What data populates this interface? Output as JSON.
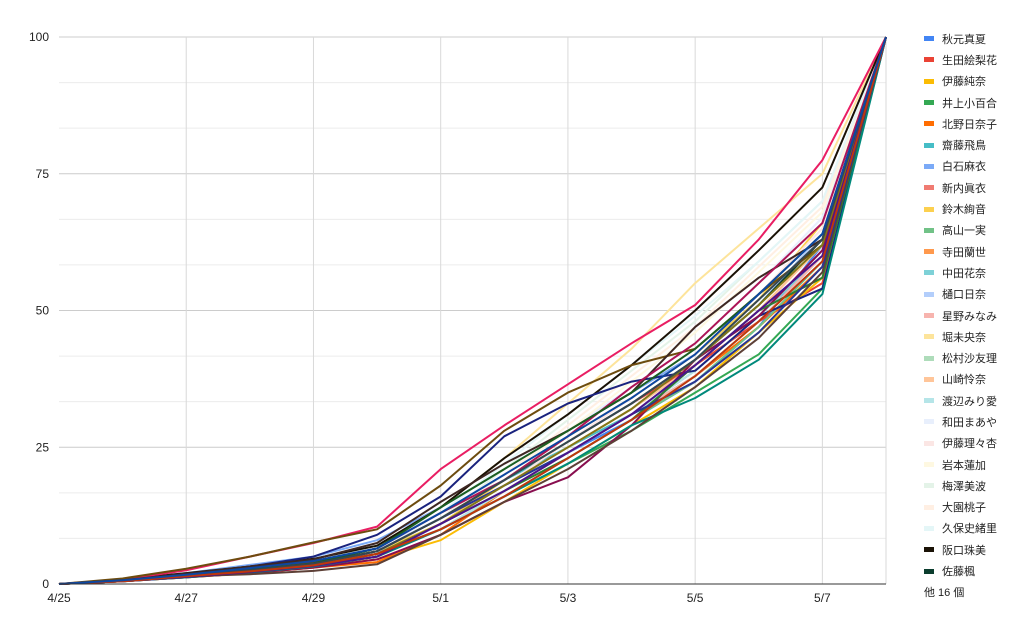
{
  "chart_data": {
    "type": "line",
    "title": "",
    "xlabel": "",
    "ylabel": "",
    "ylim": [
      0,
      100
    ],
    "y_ticks": [
      0,
      25,
      50,
      75,
      100
    ],
    "x": [
      "4/25",
      "4/26",
      "4/27",
      "4/28",
      "4/29",
      "4/30",
      "5/1",
      "5/2",
      "5/3",
      "5/4",
      "5/5",
      "5/6",
      "5/7",
      "5/8"
    ],
    "x_tick_labels": [
      "4/25",
      "4/27",
      "4/29",
      "5/1",
      "5/3",
      "5/5",
      "5/7"
    ],
    "grid": true,
    "legend_position": "right",
    "legend_more": "他 16 個",
    "series": [
      {
        "name": "秋元真夏",
        "color": "#4285F4",
        "values": [
          0,
          0.5,
          1.5,
          2.5,
          3.5,
          5.5,
          11,
          18,
          24,
          30,
          37,
          47,
          62,
          100
        ]
      },
      {
        "name": "生田絵梨花",
        "color": "#EA4335",
        "values": [
          0,
          0.6,
          1.5,
          2.5,
          3.8,
          6,
          12,
          19,
          26,
          33,
          40,
          48,
          55,
          100
        ]
      },
      {
        "name": "伊藤純奈",
        "color": "#FBBC04",
        "values": [
          0,
          0.5,
          1.2,
          2,
          3,
          4.5,
          8,
          15,
          22,
          29,
          36,
          46,
          56,
          100
        ]
      },
      {
        "name": "井上小百合",
        "color": "#34A853",
        "values": [
          0,
          0.6,
          1.5,
          2.5,
          3.5,
          5.5,
          10,
          16,
          22,
          28,
          35,
          42,
          54,
          100
        ]
      },
      {
        "name": "北野日奈子",
        "color": "#FF6D01",
        "values": [
          0,
          0.5,
          1.2,
          2,
          3,
          4,
          9,
          17,
          24,
          31,
          38,
          47,
          58,
          100
        ]
      },
      {
        "name": "齋藤飛鳥",
        "color": "#46BDC6",
        "values": [
          0,
          0.7,
          1.8,
          3,
          4.5,
          7,
          13,
          19,
          25,
          31,
          38,
          48,
          60,
          100
        ]
      },
      {
        "name": "白石麻衣",
        "color": "#7BAAF7",
        "values": [
          0,
          0.8,
          2,
          3.5,
          5,
          8,
          14,
          21,
          28,
          35,
          42,
          52,
          63,
          100
        ]
      },
      {
        "name": "新内眞衣",
        "color": "#F07B72",
        "values": [
          0,
          0.5,
          1.3,
          2.3,
          3.4,
          5,
          10,
          17,
          24,
          31,
          39,
          49,
          61,
          100
        ]
      },
      {
        "name": "鈴木絢音",
        "color": "#FCD04F",
        "values": [
          0,
          0.6,
          1.5,
          2.5,
          3.8,
          6,
          11,
          19,
          27,
          34,
          42,
          52,
          66,
          100
        ]
      },
      {
        "name": "高山一実",
        "color": "#71C287",
        "values": [
          0,
          0.5,
          1.3,
          2.2,
          3.2,
          5,
          10,
          16,
          23,
          30,
          37,
          47,
          59,
          100
        ]
      },
      {
        "name": "寺田蘭世",
        "color": "#FF994D",
        "values": [
          0,
          0.6,
          1.5,
          2.5,
          3.7,
          5.5,
          11,
          18,
          25,
          32,
          40,
          50,
          62,
          100
        ]
      },
      {
        "name": "中田花奈",
        "color": "#7ED1D7",
        "values": [
          0,
          0.5,
          1.4,
          2.4,
          3.5,
          5.5,
          10,
          17,
          24,
          31,
          39,
          49,
          60,
          100
        ]
      },
      {
        "name": "樋口日奈",
        "color": "#B3CEFB",
        "values": [
          0,
          0.6,
          1.6,
          2.7,
          4,
          6.5,
          12,
          19,
          26,
          33,
          41,
          51,
          64,
          100
        ]
      },
      {
        "name": "星野みなみ",
        "color": "#F7B4AE",
        "values": [
          0,
          0.5,
          1.3,
          2.3,
          3.4,
          5.5,
          11,
          17,
          24,
          31,
          38,
          48,
          60,
          100
        ]
      },
      {
        "name": "堀未央奈",
        "color": "#FDE49B",
        "values": [
          0,
          0.7,
          1.8,
          3,
          4.5,
          7,
          14,
          23,
          33,
          43,
          55,
          65,
          75,
          100
        ]
      },
      {
        "name": "松村沙友理",
        "color": "#AEDCBA",
        "values": [
          0,
          0.5,
          1.3,
          2.2,
          3.3,
          5,
          10,
          16,
          23,
          30,
          38,
          48,
          59,
          100
        ]
      },
      {
        "name": "山崎怜奈",
        "color": "#FFC599",
        "values": [
          0,
          0.6,
          1.5,
          2.5,
          3.7,
          5.5,
          11,
          18,
          25,
          32,
          40,
          50,
          62,
          100
        ]
      },
      {
        "name": "渡辺みり愛",
        "color": "#B5E5E8",
        "values": [
          0,
          0.5,
          1.4,
          2.4,
          3.5,
          5.5,
          10,
          17,
          24,
          31,
          39,
          49,
          61,
          100
        ]
      },
      {
        "name": "和田まあや",
        "color": "#E8EFFC",
        "values": [
          0,
          0.6,
          1.6,
          2.7,
          4,
          6.5,
          12,
          20,
          28,
          36,
          44,
          55,
          67,
          100
        ]
      },
      {
        "name": "伊藤理々杏",
        "color": "#FBE6E4",
        "values": [
          0,
          0.5,
          1.3,
          2.3,
          3.4,
          5.5,
          11,
          18,
          26,
          34,
          42,
          53,
          65,
          100
        ]
      },
      {
        "name": "岩本蓮加",
        "color": "#FEF8E1",
        "values": [
          0,
          0.6,
          1.5,
          2.5,
          3.8,
          6,
          12,
          20,
          28,
          37,
          46,
          57,
          68,
          100
        ]
      },
      {
        "name": "梅澤美波",
        "color": "#E4F3E8",
        "values": [
          0,
          0.5,
          1.4,
          2.4,
          3.5,
          6,
          12,
          21,
          30,
          39,
          48,
          59,
          70,
          100
        ]
      },
      {
        "name": "大園桃子",
        "color": "#FFEFE3",
        "values": [
          0,
          0.6,
          1.5,
          2.6,
          3.8,
          6,
          12,
          20,
          29,
          38,
          47,
          58,
          69,
          100
        ]
      },
      {
        "name": "久保史緒里",
        "color": "#E4F6F7",
        "values": [
          0,
          0.7,
          1.8,
          3,
          4.5,
          7,
          13,
          22,
          31,
          40,
          49,
          59,
          70,
          100
        ]
      },
      {
        "name": "阪口珠美",
        "color": "#1A1206",
        "values": [
          0,
          0.8,
          2,
          3.2,
          4.6,
          7,
          14,
          23,
          31,
          40,
          50,
          61,
          72.5,
          100
        ]
      },
      {
        "name": "佐藤楓",
        "color": "#0B3D2E",
        "values": [
          0,
          0.6,
          1.5,
          2.6,
          3.8,
          6,
          12,
          19,
          26,
          33,
          41,
          51,
          63,
          100
        ]
      }
    ],
    "extra_series": [
      {
        "color": "#E91E63",
        "values": [
          0,
          0.8,
          2.5,
          5,
          7.5,
          10.5,
          21,
          29,
          36.5,
          44,
          51,
          63,
          77.5,
          100
        ]
      },
      {
        "color": "#1A237E",
        "values": [
          0,
          0.6,
          1.8,
          3.2,
          5,
          9,
          16,
          27,
          33,
          37,
          39,
          49,
          54,
          100
        ]
      },
      {
        "color": "#6D4C0F",
        "values": [
          0,
          1,
          2.8,
          5,
          7.6,
          10,
          18,
          28,
          35,
          40,
          43,
          53,
          62,
          100
        ]
      },
      {
        "color": "#880E4F",
        "values": [
          0,
          0.5,
          1.2,
          2,
          3,
          4.5,
          9,
          15,
          19.5,
          29,
          41,
          49,
          61,
          100
        ]
      },
      {
        "color": "#2E7D32",
        "values": [
          0,
          0.5,
          1.3,
          2.2,
          3.3,
          5.5,
          11,
          17,
          23,
          30,
          40,
          50,
          56,
          100
        ]
      },
      {
        "color": "#3E2723",
        "values": [
          0,
          0.7,
          1.9,
          3.2,
          4.5,
          7.5,
          15,
          22,
          28,
          35,
          47,
          56,
          63,
          100
        ]
      },
      {
        "color": "#00897B",
        "values": [
          0,
          0.5,
          1.2,
          2.1,
          3.2,
          5,
          10,
          16,
          22,
          29,
          34,
          41,
          53,
          100
        ]
      },
      {
        "color": "#5D4037",
        "values": [
          0,
          0.6,
          1.4,
          1.8,
          2.4,
          3.6,
          9,
          15,
          21,
          28,
          36,
          45,
          57,
          100
        ]
      },
      {
        "color": "#283593",
        "values": [
          0,
          0.5,
          1.3,
          2.3,
          3.4,
          6,
          12,
          18,
          24,
          31,
          37,
          46,
          58,
          100
        ]
      },
      {
        "color": "#AD1457",
        "values": [
          0,
          0.6,
          1.6,
          2.7,
          4,
          6.5,
          13,
          19,
          27,
          36,
          44,
          55,
          66,
          100
        ]
      },
      {
        "color": "#827717",
        "values": [
          0,
          0.5,
          1.4,
          2.4,
          3.5,
          5.5,
          11,
          18,
          25,
          32,
          41,
          51,
          62,
          100
        ]
      },
      {
        "color": "#1B5E20",
        "values": [
          0,
          0.6,
          1.5,
          2.6,
          3.8,
          6.5,
          14,
          21,
          28,
          35,
          43,
          53,
          64,
          100
        ]
      },
      {
        "color": "#4A148C",
        "values": [
          0,
          0.5,
          1.3,
          2.2,
          3.3,
          5,
          11,
          17,
          24,
          31,
          40,
          50,
          60,
          100
        ]
      },
      {
        "color": "#37474F",
        "values": [
          0,
          0.6,
          1.5,
          2.5,
          3.7,
          6,
          12,
          19,
          26,
          33,
          41,
          52,
          63,
          100
        ]
      },
      {
        "color": "#BF360C",
        "values": [
          0,
          0.5,
          1.4,
          2.3,
          3.4,
          5.5,
          10,
          16,
          23,
          30,
          38,
          48,
          59,
          100
        ]
      },
      {
        "color": "#0D47A1",
        "values": [
          0,
          0.7,
          1.7,
          2.9,
          4.2,
          6.5,
          13,
          20,
          27,
          34,
          42,
          53,
          64,
          100
        ]
      }
    ]
  }
}
